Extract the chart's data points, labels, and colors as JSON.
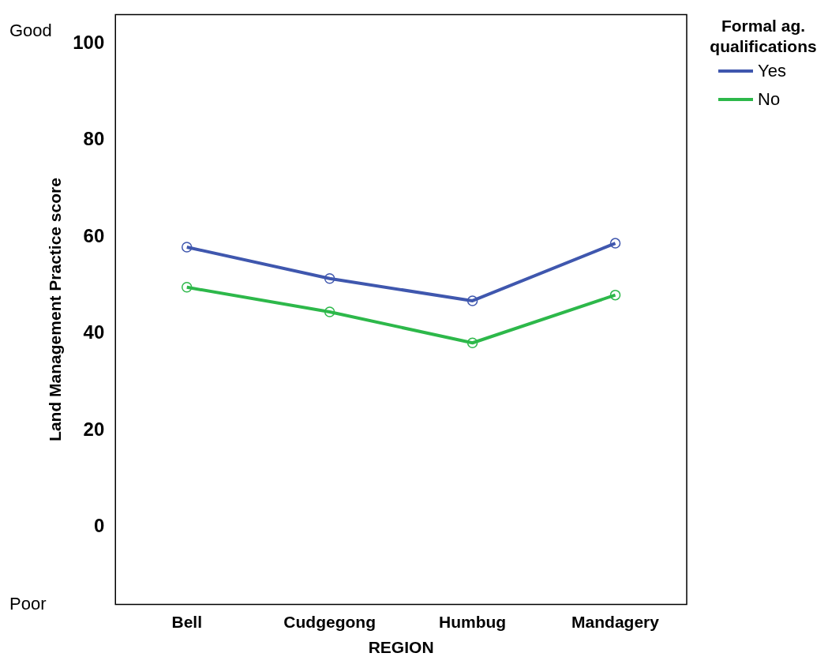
{
  "chart_data": {
    "type": "line",
    "xlabel": "REGION",
    "ylabel": "Land Management Practice score",
    "legend_title": "Formal ag. qualifications",
    "categories": [
      "Bell",
      "Cudgegong",
      "Humbug",
      "Mandagery"
    ],
    "series": [
      {
        "name": "Yes",
        "color": "#3f57ae",
        "values": [
          57.9,
          51.4,
          46.8,
          58.7
        ]
      },
      {
        "name": "No",
        "color": "#2db84a",
        "values": [
          49.6,
          44.5,
          38.1,
          48.0
        ]
      }
    ],
    "ylim": [
      -16,
      106
    ],
    "yticks": [
      0,
      20,
      40,
      60,
      80,
      100
    ],
    "grid": false,
    "legend": "right",
    "marker": "circle",
    "line_style": "solid",
    "annotations": [
      "Good",
      "Poor"
    ]
  }
}
